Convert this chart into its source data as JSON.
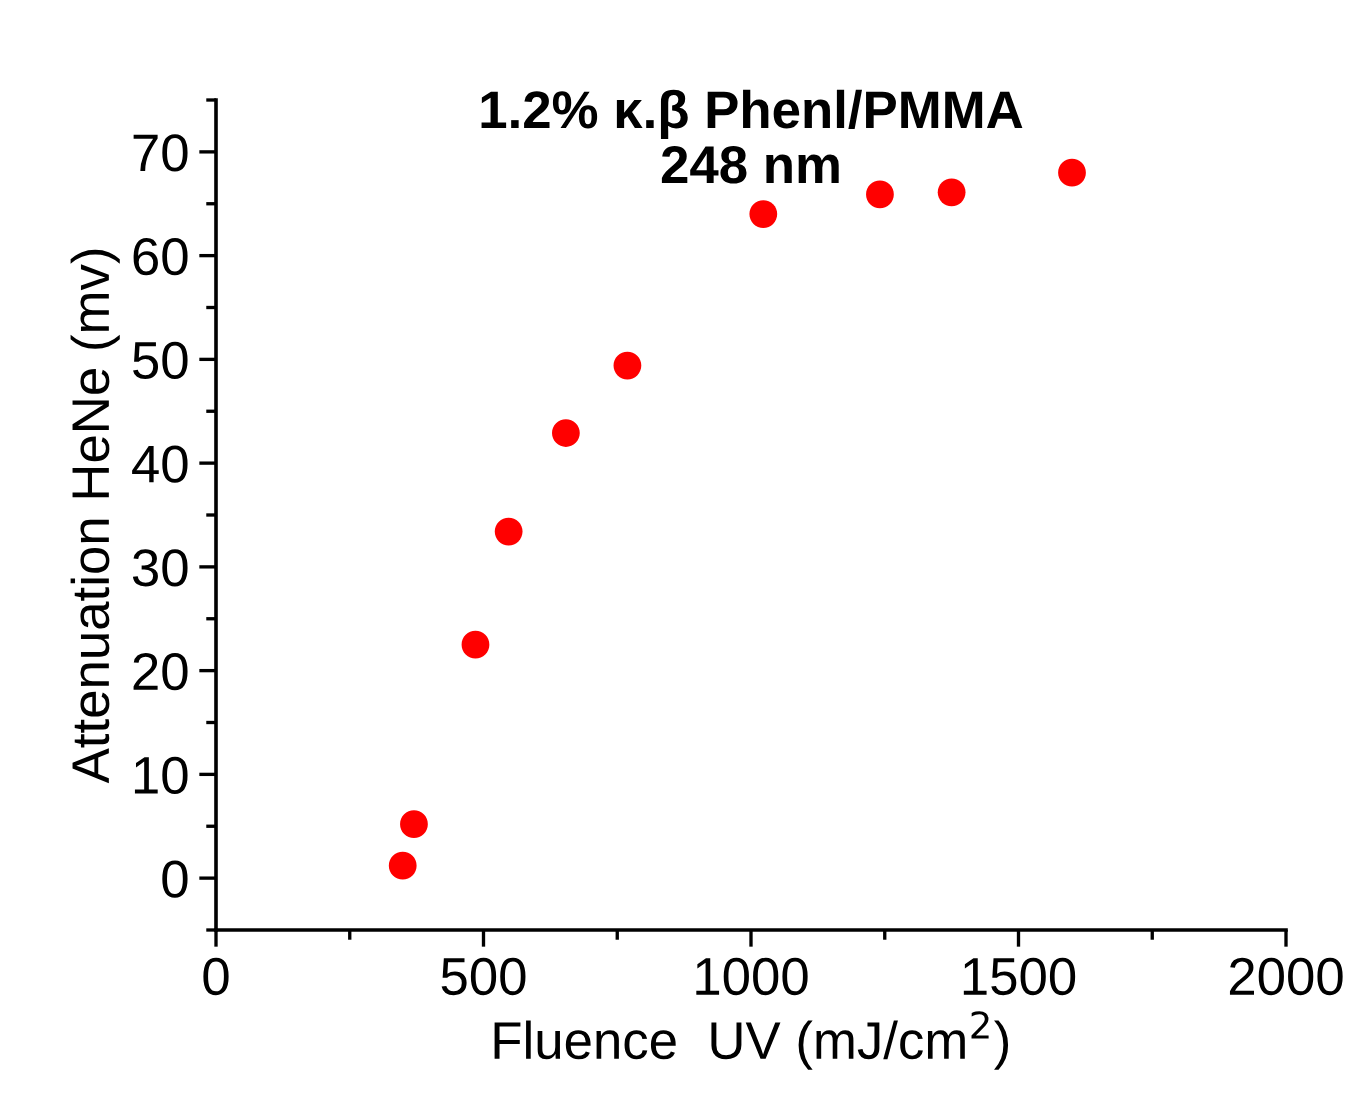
{
  "chart_data": {
    "type": "scatter",
    "title": "1.2% κ.β Phenl/PMMA\n248 nm",
    "xlabel": "Fluence  UV (mJ/cm$^{2}$)",
    "ylabel": "Attenuation HeNe (mv)",
    "x": [
      349,
      370,
      485,
      547,
      654,
      769,
      1023,
      1241,
      1375,
      1600
    ],
    "series": [
      {
        "color": "#ff0000",
        "values": [
          1.2,
          5.2,
          22.5,
          33.4,
          42.9,
          49.4,
          64.0,
          65.9,
          66.1,
          68.0
        ]
      }
    ],
    "xlim": [
      0,
      2000
    ],
    "xticks": [
      0,
      500,
      1000,
      1500,
      2000
    ],
    "ylim": [
      -5,
      75
    ],
    "yticks": [
      0,
      10,
      20,
      30,
      40,
      50,
      60,
      70
    ],
    "marker": "circle",
    "grid": false,
    "legend": false
  }
}
